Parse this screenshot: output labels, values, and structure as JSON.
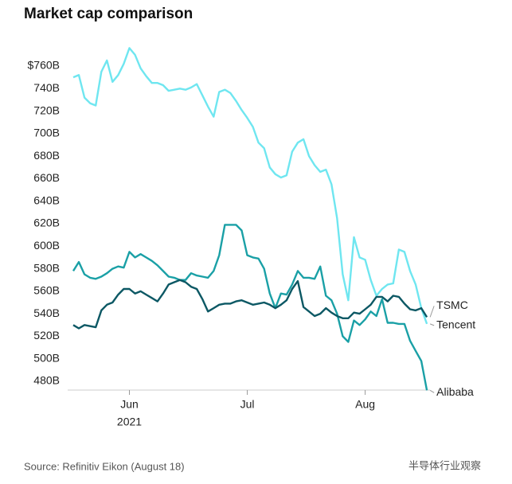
{
  "chart_data": {
    "type": "line",
    "title": "Market cap comparison",
    "source": "Source: Refinitiv Eikon (August 18)",
    "watermark": "半导体行业观察",
    "x_sublabel": "2021",
    "categories": [
      null,
      null,
      null,
      null,
      null,
      null,
      null,
      null,
      null,
      null,
      "Jun",
      null,
      null,
      null,
      null,
      null,
      null,
      null,
      null,
      null,
      null,
      null,
      null,
      null,
      null,
      null,
      null,
      null,
      null,
      null,
      null,
      "Jul",
      null,
      null,
      null,
      null,
      null,
      null,
      null,
      null,
      null,
      null,
      null,
      null,
      null,
      null,
      null,
      null,
      null,
      null,
      null,
      null,
      "Aug",
      null,
      null,
      null,
      null,
      null,
      null,
      null,
      null,
      null,
      null,
      null
    ],
    "ylim": [
      480,
      760
    ],
    "yticks": [
      {
        "value": 480,
        "label": "480B"
      },
      {
        "value": 500,
        "label": "500B"
      },
      {
        "value": 520,
        "label": "520B"
      },
      {
        "value": 540,
        "label": "540B"
      },
      {
        "value": 560,
        "label": "560B"
      },
      {
        "value": 580,
        "label": "580B"
      },
      {
        "value": 600,
        "label": "600B"
      },
      {
        "value": 620,
        "label": "620B"
      },
      {
        "value": 640,
        "label": "640B"
      },
      {
        "value": 660,
        "label": "660B"
      },
      {
        "value": 680,
        "label": "680B"
      },
      {
        "value": 700,
        "label": "700B"
      },
      {
        "value": 720,
        "label": "720B"
      },
      {
        "value": 740,
        "label": "740B"
      },
      {
        "value": 760,
        "label": "$760B"
      }
    ],
    "grid": false,
    "series": [
      {
        "name": "Tencent",
        "color": "#6fe6f0",
        "values": [
          750,
          752,
          732,
          727,
          725,
          755,
          765,
          746,
          752,
          762,
          776,
          770,
          758,
          751,
          745,
          745,
          743,
          738,
          739,
          740,
          739,
          741,
          744,
          734,
          724,
          715,
          737,
          739,
          736,
          729,
          721,
          714,
          706,
          692,
          687,
          670,
          664,
          661,
          663,
          684,
          692,
          695,
          680,
          672,
          666,
          668,
          655,
          625,
          575,
          552,
          608,
          590,
          588,
          570,
          556,
          562,
          566,
          567,
          597,
          595,
          578,
          566,
          545,
          531
        ]
      },
      {
        "name": "Alibaba",
        "color": "#1aa0a6",
        "values": [
          578,
          586,
          575,
          572,
          571,
          573,
          576,
          580,
          582,
          581,
          595,
          590,
          593,
          590,
          587,
          583,
          578,
          573,
          572,
          570,
          570,
          576,
          574,
          573,
          572,
          578,
          592,
          619,
          619,
          619,
          614,
          592,
          590,
          589,
          580,
          558,
          545,
          558,
          557,
          566,
          578,
          572,
          572,
          571,
          582,
          556,
          552,
          540,
          520,
          515,
          534,
          530,
          535,
          542,
          538,
          553,
          532,
          532,
          531,
          531,
          516,
          507,
          498,
          472
        ]
      },
      {
        "name": "TSMC",
        "color": "#0c5864",
        "values": [
          530,
          527,
          530,
          529,
          528,
          543,
          548,
          550,
          557,
          562,
          562,
          558,
          560,
          557,
          554,
          551,
          558,
          566,
          568,
          570,
          568,
          564,
          562,
          553,
          542,
          545,
          548,
          549,
          549,
          551,
          552,
          550,
          548,
          549,
          550,
          548,
          545,
          548,
          552,
          562,
          569,
          546,
          542,
          538,
          540,
          545,
          541,
          538,
          536,
          536,
          541,
          540,
          544,
          548,
          555,
          555,
          551,
          556,
          555,
          549,
          544,
          543,
          545,
          537
        ]
      }
    ]
  }
}
